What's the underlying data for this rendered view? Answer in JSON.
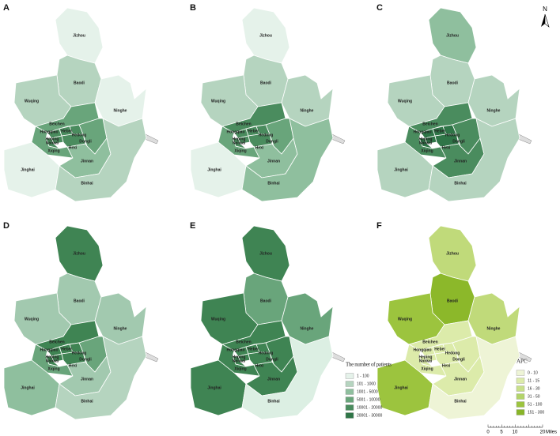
{
  "panels": [
    {
      "letter": "A",
      "districts": [
        {
          "name": "Jizhou",
          "color": "#e5f2ea"
        },
        {
          "name": "Baodi",
          "color": "#b5d4bf"
        },
        {
          "name": "Wuqing",
          "color": "#b5d4bf"
        },
        {
          "name": "Ninghe",
          "color": "#e5f2ea"
        },
        {
          "name": "Beichen",
          "color": "#69a57b"
        },
        {
          "name": "Xiqing",
          "color": "#69a57b"
        },
        {
          "name": "Dongli",
          "color": "#69a57b"
        },
        {
          "name": "Jinnan",
          "color": "#8fbf9e"
        },
        {
          "name": "Jinghai",
          "color": "#e5f2ea"
        },
        {
          "name": "Binhai",
          "color": "#b5d4bf"
        },
        {
          "name": "Hongqiao",
          "color": "#4a8c5e"
        },
        {
          "name": "Hebei",
          "color": "#4a8c5e"
        },
        {
          "name": "Heping",
          "color": "#4a8c5e"
        },
        {
          "name": "Nankai",
          "color": "#4a8c5e"
        },
        {
          "name": "Hedong",
          "color": "#4a8c5e"
        },
        {
          "name": "Hexi",
          "color": "#4a8c5e"
        }
      ]
    },
    {
      "letter": "B",
      "districts": [
        {
          "name": "Jizhou",
          "color": "#e5f2ea"
        },
        {
          "name": "Baodi",
          "color": "#b5d4bf"
        },
        {
          "name": "Wuqing",
          "color": "#b5d4bf"
        },
        {
          "name": "Ninghe",
          "color": "#b5d4bf"
        },
        {
          "name": "Beichen",
          "color": "#4a8c5e"
        },
        {
          "name": "Xiqing",
          "color": "#69a57b"
        },
        {
          "name": "Dongli",
          "color": "#69a57b"
        },
        {
          "name": "Jinnan",
          "color": "#8fbf9e"
        },
        {
          "name": "Jinghai",
          "color": "#e5f2ea"
        },
        {
          "name": "Binhai",
          "color": "#8fbf9e"
        },
        {
          "name": "Hongqiao",
          "color": "#4a8c5e"
        },
        {
          "name": "Hebei",
          "color": "#4a8c5e"
        },
        {
          "name": "Heping",
          "color": "#4a8c5e"
        },
        {
          "name": "Nankai",
          "color": "#4a8c5e"
        },
        {
          "name": "Hedong",
          "color": "#4a8c5e"
        },
        {
          "name": "Hexi",
          "color": "#4a8c5e"
        }
      ]
    },
    {
      "letter": "C",
      "districts": [
        {
          "name": "Jizhou",
          "color": "#8fbf9e"
        },
        {
          "name": "Baodi",
          "color": "#b5d4bf"
        },
        {
          "name": "Wuqing",
          "color": "#b5d4bf"
        },
        {
          "name": "Ninghe",
          "color": "#b5d4bf"
        },
        {
          "name": "Beichen",
          "color": "#4a8c5e"
        },
        {
          "name": "Xiqing",
          "color": "#4a8c5e"
        },
        {
          "name": "Dongli",
          "color": "#4a8c5e"
        },
        {
          "name": "Jinnan",
          "color": "#4a8c5e"
        },
        {
          "name": "Jinghai",
          "color": "#b5d4bf"
        },
        {
          "name": "Binhai",
          "color": "#b5d4bf"
        },
        {
          "name": "Hongqiao",
          "color": "#2f7547"
        },
        {
          "name": "Hebei",
          "color": "#2f7547"
        },
        {
          "name": "Heping",
          "color": "#2f7547"
        },
        {
          "name": "Nankai",
          "color": "#2f7547"
        },
        {
          "name": "Hedong",
          "color": "#2f7547"
        },
        {
          "name": "Hexi",
          "color": "#2f7547"
        }
      ]
    },
    {
      "letter": "D",
      "districts": [
        {
          "name": "Jizhou",
          "color": "#3f8453"
        },
        {
          "name": "Baodi",
          "color": "#a2c9af"
        },
        {
          "name": "Wuqing",
          "color": "#a2c9af"
        },
        {
          "name": "Ninghe",
          "color": "#a2c9af"
        },
        {
          "name": "Beichen",
          "color": "#3f8453"
        },
        {
          "name": "Xiqing",
          "color": "#69a57b"
        },
        {
          "name": "Dongli",
          "color": "#69a57b"
        },
        {
          "name": "Jinnan",
          "color": "#a2c9af"
        },
        {
          "name": "Jinghai",
          "color": "#8fbf9e"
        },
        {
          "name": "Binhai",
          "color": "#b5d4bf"
        },
        {
          "name": "Hongqiao",
          "color": "#3f8453"
        },
        {
          "name": "Hebei",
          "color": "#3f8453"
        },
        {
          "name": "Heping",
          "color": "#3f8453"
        },
        {
          "name": "Nankai",
          "color": "#3f8453"
        },
        {
          "name": "Hedong",
          "color": "#3f8453"
        },
        {
          "name": "Hexi",
          "color": "#3f8453"
        }
      ]
    },
    {
      "letter": "E",
      "districts": [
        {
          "name": "Jizhou",
          "color": "#3f8453"
        },
        {
          "name": "Baodi",
          "color": "#69a57b"
        },
        {
          "name": "Wuqing",
          "color": "#3f8453"
        },
        {
          "name": "Ninghe",
          "color": "#69a57b"
        },
        {
          "name": "Beichen",
          "color": "#3f8453"
        },
        {
          "name": "Xiqing",
          "color": "#3f8453"
        },
        {
          "name": "Dongli",
          "color": "#3f8453"
        },
        {
          "name": "Jinnan",
          "color": "#3f8453"
        },
        {
          "name": "Jinghai",
          "color": "#3f8453"
        },
        {
          "name": "Binhai",
          "color": "#dcefe3"
        },
        {
          "name": "Hongqiao",
          "color": "#3f8453"
        },
        {
          "name": "Hebei",
          "color": "#3f8453"
        },
        {
          "name": "Heping",
          "color": "#3f8453"
        },
        {
          "name": "Nankai",
          "color": "#3f8453"
        },
        {
          "name": "Hedong",
          "color": "#3f8453"
        },
        {
          "name": "Hexi",
          "color": "#3f8453"
        }
      ]
    },
    {
      "letter": "F",
      "districts": [
        {
          "name": "Jizhou",
          "color": "#c0da7a"
        },
        {
          "name": "Baodi",
          "color": "#8cb82a"
        },
        {
          "name": "Wuqing",
          "color": "#9cc43e"
        },
        {
          "name": "Ninghe",
          "color": "#c0da7a"
        },
        {
          "name": "Beichen",
          "color": "#dcebaa"
        },
        {
          "name": "Xiqing",
          "color": "#dcebaa"
        },
        {
          "name": "Dongli",
          "color": "#dcebaa"
        },
        {
          "name": "Jinnan",
          "color": "#dcebaa"
        },
        {
          "name": "Jinghai",
          "color": "#9cc43e"
        },
        {
          "name": "Binhai",
          "color": "#eef4d6"
        },
        {
          "name": "Hongqiao",
          "color": "#dcebaa"
        },
        {
          "name": "Hebei",
          "color": "#dcebaa"
        },
        {
          "name": "Heping",
          "color": "#dcebaa"
        },
        {
          "name": "Nankai",
          "color": "#dcebaa"
        },
        {
          "name": "Hedong",
          "color": "#dcebaa"
        },
        {
          "name": "Hexi",
          "color": "#dcebaa"
        }
      ]
    }
  ],
  "legends": [
    {
      "title": "The number of patients",
      "items": [
        {
          "label": "1 - 100",
          "color": "#e5f2ea"
        },
        {
          "label": "101 - 1000",
          "color": "#b5d4bf"
        },
        {
          "label": "1001 - 5000",
          "color": "#8fbf9e"
        },
        {
          "label": "5001 - 10000",
          "color": "#69a57b"
        },
        {
          "label": "10001 - 20000",
          "color": "#4a8c5e"
        },
        {
          "label": "20001 - 30000",
          "color": "#2f7547"
        }
      ]
    },
    {
      "title": "APC",
      "items": [
        {
          "label": "0 - 10",
          "color": "#eef4d6"
        },
        {
          "label": "11 - 15",
          "color": "#dcebaa"
        },
        {
          "label": "16 - 30",
          "color": "#c8e08a"
        },
        {
          "label": "31 - 50",
          "color": "#b3d46a"
        },
        {
          "label": "51 - 100",
          "color": "#9cc43e"
        },
        {
          "label": "151 - 300",
          "color": "#88b527"
        }
      ]
    }
  ],
  "north": "N",
  "scale_bar": {
    "ticks": [
      "0",
      "5",
      "10",
      "20"
    ],
    "unit": "Miles"
  }
}
